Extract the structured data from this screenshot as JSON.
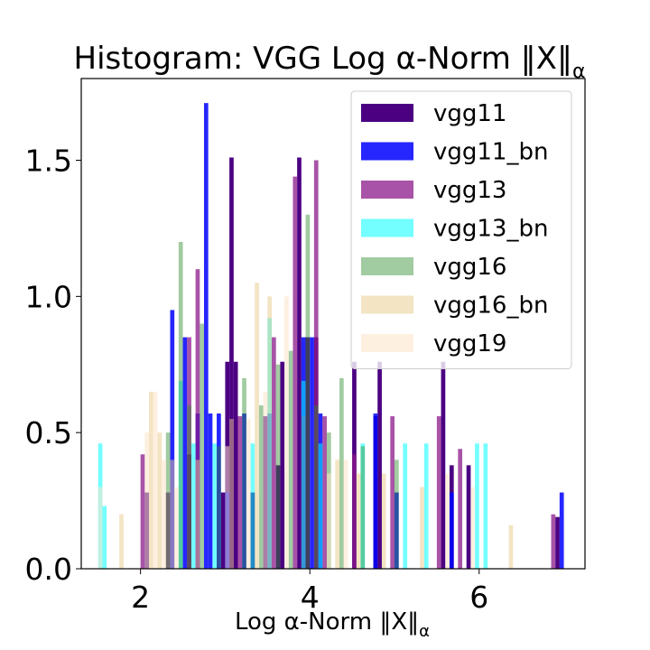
{
  "chart_data": {
    "type": "bar",
    "title": "Histogram: VGG Log α-Norm ‖X‖",
    "title_script": "α",
    "xlabel": "Log α-Norm ‖X‖",
    "xlabel_script": "α",
    "ylabel": "",
    "xlim": [
      1.3,
      7.25
    ],
    "ylim": [
      0,
      1.8
    ],
    "xticks": [
      "2",
      "4",
      "6"
    ],
    "xtick_values": [
      2,
      4,
      6
    ],
    "yticks": [
      "0.0",
      "0.5",
      "1.0",
      "1.5"
    ],
    "ytick_values": [
      0,
      0.5,
      1.0,
      1.5
    ],
    "grid": false,
    "legend_position": "top-right",
    "series": [
      {
        "name": "vgg11",
        "color": "#4b0082",
        "opacity": 1.0,
        "bin_width": 0.05,
        "x": [
          2.05,
          2.55,
          2.95,
          3.0,
          3.05,
          3.1,
          3.3,
          3.45,
          3.6,
          3.65,
          3.85,
          3.95,
          4.05,
          4.5,
          4.75,
          4.8,
          5.55,
          5.65,
          5.85,
          6.9
        ],
        "values": [
          0.28,
          0.42,
          0.28,
          0.76,
          1.51,
          0.76,
          0.28,
          0.56,
          0.38,
          0.76,
          1.51,
          0.85,
          0.85,
          0.76,
          0.56,
          0.76,
          0.76,
          0.38,
          0.38,
          0.19
        ]
      },
      {
        "name": "vgg11_bn",
        "color": "#0000ff",
        "opacity": 0.85,
        "bin_width": 0.05,
        "x": [
          2.35,
          2.5,
          2.65,
          2.75,
          2.8,
          2.9,
          3.0,
          3.2,
          3.5,
          3.9,
          4.0,
          4.1,
          4.75,
          5.0,
          5.65,
          6.95
        ],
        "values": [
          0.95,
          0.85,
          0.57,
          1.71,
          0.57,
          0.57,
          0.28,
          0.57,
          0.57,
          0.85,
          0.85,
          0.57,
          0.57,
          0.28,
          0.28,
          0.28
        ]
      },
      {
        "name": "vgg13",
        "color": "#8b1a89",
        "opacity": 0.75,
        "bin_width": 0.05,
        "x": [
          2.0,
          2.3,
          2.55,
          2.65,
          3.15,
          3.55,
          3.8,
          3.9,
          4.05,
          4.15,
          4.5,
          4.95,
          5.5,
          5.75,
          6.85
        ],
        "values": [
          0.42,
          0.28,
          0.85,
          1.1,
          0.56,
          0.85,
          1.44,
          0.56,
          1.5,
          0.56,
          0.42,
          0.56,
          0.56,
          0.44,
          0.2
        ]
      },
      {
        "name": "vgg13_bn",
        "color": "#00ffff",
        "opacity": 0.55,
        "bin_width": 0.05,
        "x": [
          1.5,
          1.55,
          2.45,
          2.6,
          2.85,
          3.3,
          3.5,
          3.9,
          4.1,
          4.6,
          5.1,
          5.35,
          5.95,
          6.05
        ],
        "values": [
          0.46,
          0.23,
          0.69,
          0.46,
          0.46,
          0.46,
          0.92,
          0.69,
          0.46,
          0.46,
          0.46,
          0.46,
          0.46,
          0.46
        ]
      },
      {
        "name": "vgg16",
        "color": "#2e8b2e",
        "opacity": 0.45,
        "bin_width": 0.05,
        "x": [
          2.3,
          2.45,
          2.55,
          2.7,
          2.9,
          3.2,
          3.4,
          3.6,
          3.75,
          3.95,
          4.05,
          4.2,
          4.35,
          4.6,
          5.0
        ],
        "values": [
          0.5,
          1.2,
          0.6,
          0.9,
          0.45,
          0.7,
          0.6,
          0.75,
          0.8,
          1.3,
          0.6,
          0.5,
          0.7,
          0.45,
          0.4
        ]
      },
      {
        "name": "vgg16_bn",
        "color": "#e8c98a",
        "opacity": 0.5,
        "bin_width": 0.05,
        "x": [
          1.75,
          2.1,
          2.2,
          2.35,
          2.65,
          3.05,
          3.35,
          3.5,
          4.3,
          4.55,
          4.85,
          5.3,
          6.35
        ],
        "values": [
          0.2,
          0.65,
          0.5,
          0.4,
          0.4,
          0.55,
          1.05,
          1.0,
          0.4,
          0.35,
          0.35,
          0.3,
          0.16
        ]
      },
      {
        "name": "vgg19",
        "color": "#fde3c7",
        "opacity": 0.55,
        "bin_width": 0.05,
        "x": [
          1.5,
          2.05,
          2.15,
          2.25,
          2.4,
          3.0,
          3.25,
          3.45,
          3.7,
          4.2,
          4.4,
          5.6,
          5.9
        ],
        "values": [
          0.3,
          0.5,
          0.65,
          0.4,
          0.3,
          0.45,
          0.55,
          0.65,
          1.0,
          0.35,
          0.4,
          0.35,
          0.3
        ]
      }
    ]
  }
}
